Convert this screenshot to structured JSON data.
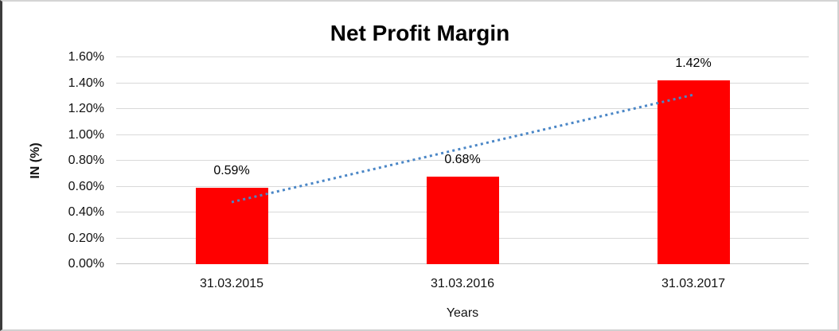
{
  "chart_data": {
    "type": "bar",
    "title": "Net Profit Margin",
    "xlabel": "Years",
    "ylabel": "IN (%)",
    "categories": [
      "31.03.2015",
      "31.03.2016",
      "31.03.2017"
    ],
    "values": [
      0.59,
      0.68,
      1.42
    ],
    "data_labels": [
      "0.59%",
      "0.68%",
      "1.42%"
    ],
    "y_ticks": [
      {
        "value": 1.6,
        "label": "1.60%"
      },
      {
        "value": 1.4,
        "label": "1.40%"
      },
      {
        "value": 1.2,
        "label": "1.20%"
      },
      {
        "value": 1.0,
        "label": "1.00%"
      },
      {
        "value": 0.8,
        "label": "0.80%"
      },
      {
        "value": 0.6,
        "label": "0.60%"
      },
      {
        "value": 0.4,
        "label": "0.40%"
      },
      {
        "value": 0.2,
        "label": "0.20%"
      },
      {
        "value": 0.0,
        "label": "0.00%"
      }
    ],
    "ylim": [
      0,
      1.6
    ],
    "grid": "horizontal-only",
    "legend": "none",
    "bar_color": "#ff0000",
    "gridline_color": "#d9d9d9",
    "trendline": {
      "type": "linear",
      "style": "dotted",
      "color": "#4a86c6",
      "start_value": 0.48,
      "end_value": 1.31
    }
  }
}
